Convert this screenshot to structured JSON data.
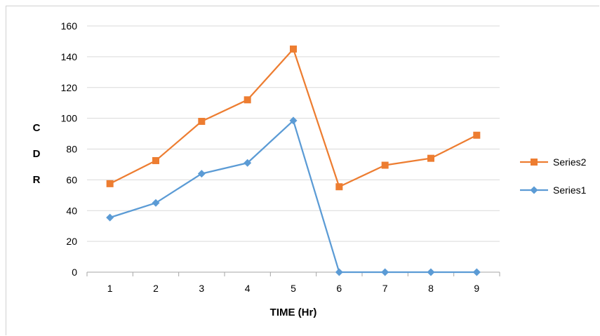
{
  "chart_data": {
    "type": "line",
    "title": "",
    "xlabel": "TIME (Hr)",
    "ylabel_letters": [
      "C",
      "D",
      "R"
    ],
    "x": [
      1,
      2,
      3,
      4,
      5,
      6,
      7,
      8,
      9
    ],
    "ylim": [
      0,
      160
    ],
    "yticks": [
      0,
      20,
      40,
      60,
      80,
      100,
      120,
      140,
      160
    ],
    "grid": true,
    "legend_position": "right",
    "series": [
      {
        "name": "Series2",
        "color": "#ED7D31",
        "marker": "square",
        "values": [
          57.5,
          72.5,
          98,
          112,
          145,
          55.5,
          69.5,
          74,
          89
        ]
      },
      {
        "name": "Series1",
        "color": "#5B9BD5",
        "marker": "diamond",
        "values": [
          35.5,
          45,
          64,
          71,
          98.5,
          0,
          0,
          0,
          0
        ]
      }
    ]
  }
}
